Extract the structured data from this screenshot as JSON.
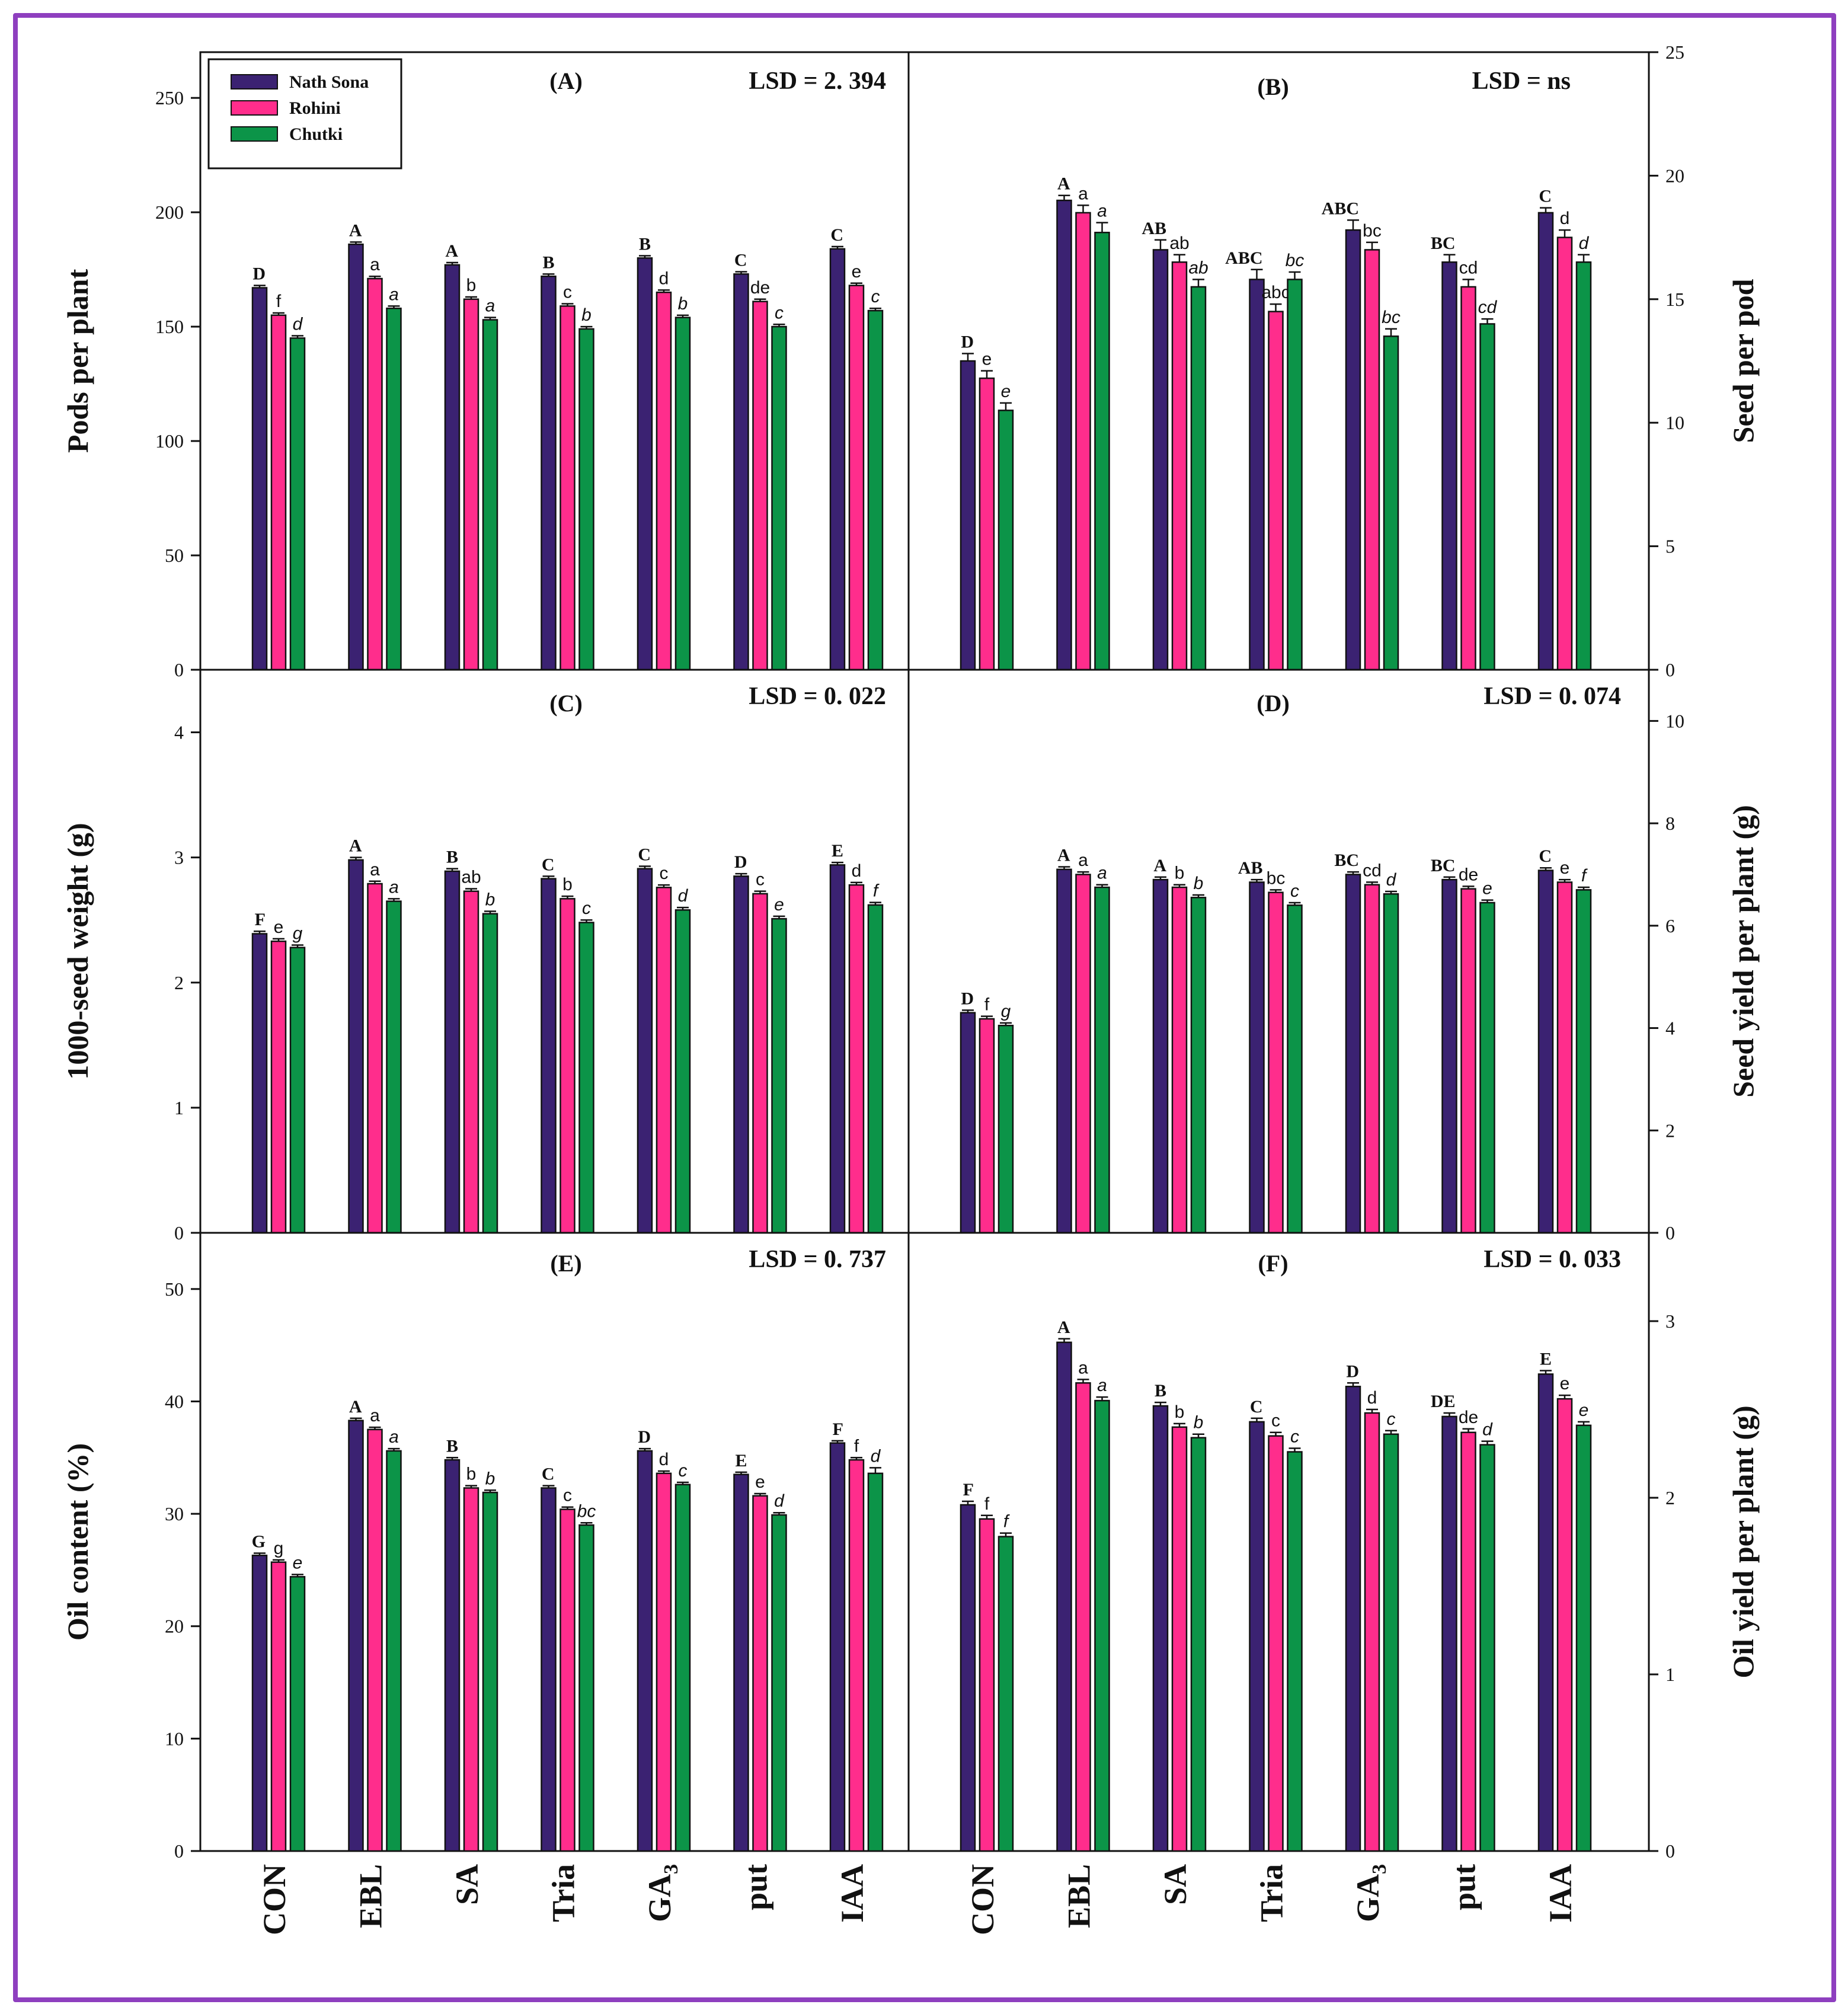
{
  "colors": {
    "frame": "#8e3fbf",
    "Nath Sona": "#3b2272",
    "Rohini": "#ff2d8c",
    "Chutki": "#0c9448"
  },
  "legend": {
    "entries": [
      "Nath Sona",
      "Rohini",
      "Chutki"
    ]
  },
  "categories": [
    "CON",
    "EBL",
    "SA",
    "Tria",
    "GA3",
    "put",
    "IAA"
  ],
  "chart_data": [
    {
      "id": "A",
      "panel_label": "(A)",
      "type": "bar",
      "lsd": "LSD = 2. 394",
      "ylabel": "Pods per plant",
      "axis_side": "left",
      "ylim": [
        0,
        270
      ],
      "yticks": [
        0,
        50,
        100,
        150,
        200,
        250
      ],
      "categories": [
        "CON",
        "EBL",
        "SA",
        "Tria",
        "GA3",
        "put",
        "IAA"
      ],
      "series": [
        {
          "name": "Nath Sona",
          "values": [
            167,
            186,
            177,
            172,
            180,
            173,
            184
          ],
          "errors": [
            1,
            1,
            1,
            1,
            1,
            1,
            1
          ],
          "letters": [
            "D",
            "A",
            "A",
            "B",
            "B",
            "C",
            "C"
          ]
        },
        {
          "name": "Rohini",
          "values": [
            155,
            171,
            162,
            159,
            165,
            161,
            168
          ],
          "errors": [
            1,
            1,
            1,
            1,
            1,
            1,
            1
          ],
          "letters": [
            "f",
            "a",
            "b",
            "c",
            "d",
            "de",
            "e"
          ]
        },
        {
          "name": "Chutki",
          "values": [
            145,
            158,
            153,
            149,
            154,
            150,
            157
          ],
          "errors": [
            1,
            1,
            1,
            1,
            1,
            1,
            1
          ],
          "letters": [
            "d",
            "a",
            "a",
            "b",
            "b",
            "c",
            "c"
          ]
        }
      ]
    },
    {
      "id": "B",
      "panel_label": "(B)",
      "type": "bar",
      "lsd": "LSD = ns",
      "ylabel": "Seed per pod",
      "axis_side": "right",
      "ylim": [
        0,
        25
      ],
      "yticks": [
        0,
        5,
        10,
        15,
        20,
        25
      ],
      "categories": [
        "CON",
        "EBL",
        "SA",
        "Tria",
        "GA3",
        "put",
        "IAA"
      ],
      "series": [
        {
          "name": "Nath Sona",
          "values": [
            12.5,
            19,
            17,
            15.8,
            17.8,
            16.5,
            18.5
          ],
          "errors": [
            0.3,
            0.2,
            0.4,
            0.4,
            0.4,
            0.3,
            0.2
          ],
          "letters": [
            "D",
            "A",
            "AB",
            "ABC",
            "ABC",
            "BC",
            "C"
          ]
        },
        {
          "name": "Rohini",
          "values": [
            11.8,
            18.5,
            16.5,
            14.5,
            17,
            15.5,
            17.5
          ],
          "errors": [
            0.3,
            0.3,
            0.3,
            0.3,
            0.3,
            0.3,
            0.3
          ],
          "letters": [
            "e",
            "a",
            "ab",
            "abc",
            "bc",
            "cd",
            "d"
          ]
        },
        {
          "name": "Chutki",
          "values": [
            10.5,
            17.7,
            15.5,
            15.8,
            13.5,
            14,
            16.5
          ],
          "errors": [
            0.3,
            0.4,
            0.3,
            0.3,
            0.3,
            0.2,
            0.3
          ],
          "letters": [
            "e",
            "a",
            "ab",
            "bc",
            "bc",
            "cd",
            "d"
          ]
        }
      ]
    },
    {
      "id": "C",
      "panel_label": "(C)",
      "type": "bar",
      "lsd": "LSD = 0. 022",
      "ylabel": "1000-seed weight (g)",
      "axis_side": "left",
      "ylim": [
        0,
        4.5
      ],
      "yticks": [
        0,
        1,
        2,
        3,
        4
      ],
      "categories": [
        "CON",
        "EBL",
        "SA",
        "Tria",
        "GA3",
        "put",
        "IAA"
      ],
      "series": [
        {
          "name": "Nath Sona",
          "values": [
            2.39,
            2.98,
            2.89,
            2.83,
            2.91,
            2.85,
            2.94
          ],
          "errors": [
            0.02,
            0.02,
            0.02,
            0.02,
            0.02,
            0.02,
            0.02
          ],
          "letters": [
            "F",
            "A",
            "B",
            "C",
            "C",
            "D",
            "E"
          ]
        },
        {
          "name": "Rohini",
          "values": [
            2.33,
            2.79,
            2.73,
            2.67,
            2.76,
            2.71,
            2.78
          ],
          "errors": [
            0.02,
            0.02,
            0.02,
            0.02,
            0.02,
            0.02,
            0.02
          ],
          "letters": [
            "e",
            "a",
            "ab",
            "b",
            "c",
            "c",
            "d"
          ]
        },
        {
          "name": "Chutki",
          "values": [
            2.28,
            2.65,
            2.55,
            2.48,
            2.58,
            2.51,
            2.62
          ],
          "errors": [
            0.02,
            0.02,
            0.02,
            0.02,
            0.02,
            0.02,
            0.02
          ],
          "letters": [
            "g",
            "a",
            "b",
            "c",
            "d",
            "e",
            "f"
          ]
        }
      ]
    },
    {
      "id": "D",
      "panel_label": "(D)",
      "type": "bar",
      "lsd": "LSD = 0. 074",
      "ylabel": "Seed yield per plant (g)",
      "axis_side": "right",
      "ylim": [
        0,
        11
      ],
      "yticks": [
        0,
        2,
        4,
        6,
        8,
        10
      ],
      "categories": [
        "CON",
        "EBL",
        "SA",
        "Tria",
        "GA3",
        "put",
        "IAA"
      ],
      "series": [
        {
          "name": "Nath Sona",
          "values": [
            4.3,
            7.1,
            6.9,
            6.85,
            7.0,
            6.9,
            7.08
          ],
          "errors": [
            0.05,
            0.05,
            0.05,
            0.05,
            0.05,
            0.05,
            0.05
          ],
          "letters": [
            "D",
            "A",
            "A",
            "AB",
            "BC",
            "BC",
            "C"
          ]
        },
        {
          "name": "Rohini",
          "values": [
            4.18,
            7.0,
            6.75,
            6.65,
            6.8,
            6.72,
            6.85
          ],
          "errors": [
            0.05,
            0.05,
            0.05,
            0.05,
            0.05,
            0.05,
            0.05
          ],
          "letters": [
            "f",
            "a",
            "b",
            "bc",
            "cd",
            "de",
            "e"
          ]
        },
        {
          "name": "Chutki",
          "values": [
            4.05,
            6.75,
            6.55,
            6.4,
            6.62,
            6.45,
            6.7
          ],
          "errors": [
            0.05,
            0.05,
            0.05,
            0.05,
            0.05,
            0.05,
            0.05
          ],
          "letters": [
            "g",
            "a",
            "b",
            "c",
            "d",
            "e",
            "f"
          ]
        }
      ]
    },
    {
      "id": "E",
      "panel_label": "(E)",
      "type": "bar",
      "lsd": "LSD = 0. 737",
      "ylabel": "Oil content (%)",
      "axis_side": "left",
      "ylim": [
        0,
        55
      ],
      "yticks": [
        0,
        10,
        20,
        30,
        40,
        50
      ],
      "categories": [
        "CON",
        "EBL",
        "SA",
        "Tria",
        "GA3",
        "put",
        "IAA"
      ],
      "series": [
        {
          "name": "Nath Sona",
          "values": [
            26.3,
            38.3,
            34.8,
            32.3,
            35.6,
            33.5,
            36.3
          ],
          "errors": [
            0.2,
            0.2,
            0.2,
            0.2,
            0.2,
            0.2,
            0.2
          ],
          "letters": [
            "G",
            "A",
            "B",
            "C",
            "D",
            "E",
            "F"
          ]
        },
        {
          "name": "Rohini",
          "values": [
            25.7,
            37.5,
            32.3,
            30.4,
            33.6,
            31.6,
            34.8
          ],
          "errors": [
            0.2,
            0.2,
            0.2,
            0.2,
            0.2,
            0.2,
            0.2
          ],
          "letters": [
            "g",
            "a",
            "b",
            "c",
            "d",
            "e",
            "f"
          ]
        },
        {
          "name": "Chutki",
          "values": [
            24.4,
            35.6,
            31.9,
            29,
            32.6,
            29.9,
            33.6
          ],
          "errors": [
            0.2,
            0.2,
            0.2,
            0.2,
            0.2,
            0.2,
            0.5
          ],
          "letters": [
            "e",
            "a",
            "b",
            "bc",
            "c",
            "d",
            "d"
          ]
        }
      ]
    },
    {
      "id": "F",
      "panel_label": "(F)",
      "type": "bar",
      "lsd": "LSD = 0. 033",
      "ylabel": "Oil yield per plant (g)",
      "axis_side": "right",
      "ylim": [
        0,
        3.5
      ],
      "yticks": [
        0,
        1,
        2,
        3
      ],
      "categories": [
        "CON",
        "EBL",
        "SA",
        "Tria",
        "GA3",
        "put",
        "IAA"
      ],
      "series": [
        {
          "name": "Nath Sona",
          "values": [
            1.96,
            2.88,
            2.52,
            2.43,
            2.63,
            2.46,
            2.7
          ],
          "errors": [
            0.02,
            0.02,
            0.02,
            0.02,
            0.02,
            0.02,
            0.02
          ],
          "letters": [
            "F",
            "A",
            "B",
            "C",
            "D",
            "DE",
            "E"
          ]
        },
        {
          "name": "Rohini",
          "values": [
            1.88,
            2.65,
            2.4,
            2.35,
            2.48,
            2.37,
            2.56
          ],
          "errors": [
            0.02,
            0.02,
            0.02,
            0.02,
            0.02,
            0.02,
            0.02
          ],
          "letters": [
            "f",
            "a",
            "b",
            "c",
            "d",
            "de",
            "e"
          ]
        },
        {
          "name": "Chutki",
          "values": [
            1.78,
            2.55,
            2.34,
            2.26,
            2.36,
            2.3,
            2.41
          ],
          "errors": [
            0.02,
            0.02,
            0.02,
            0.02,
            0.02,
            0.02,
            0.02
          ],
          "letters": [
            "f",
            "a",
            "b",
            "c",
            "c",
            "d",
            "e"
          ]
        }
      ]
    }
  ]
}
